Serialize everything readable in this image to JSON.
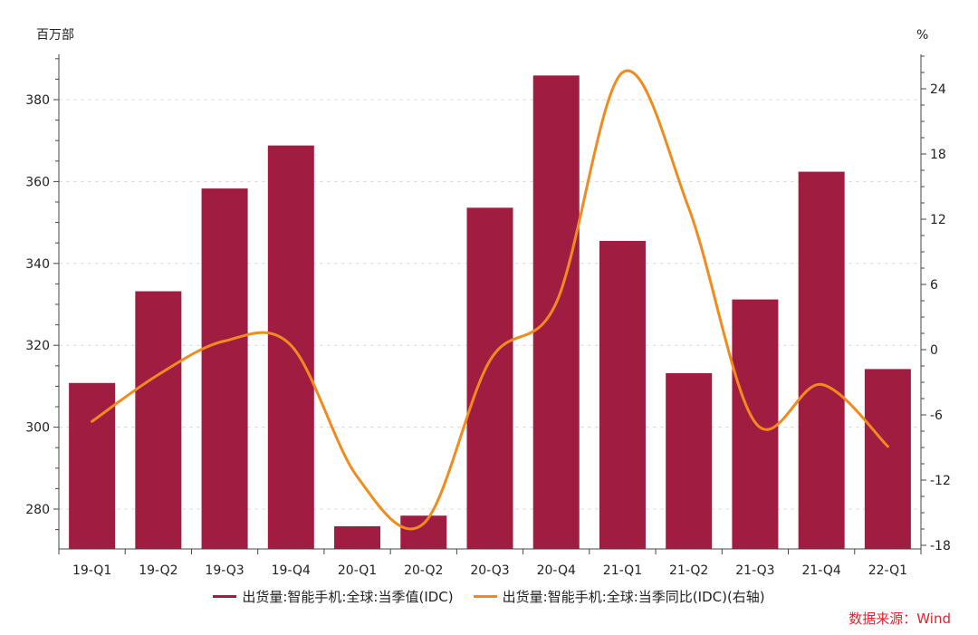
{
  "chart_data": {
    "type": "bar+line",
    "categories": [
      "19-Q1",
      "19-Q2",
      "19-Q3",
      "19-Q4",
      "20-Q1",
      "20-Q2",
      "20-Q3",
      "20-Q4",
      "21-Q1",
      "21-Q2",
      "21-Q3",
      "21-Q4",
      "22-Q1"
    ],
    "series": [
      {
        "name": "出货量:智能手机:全球:当季值(IDC)",
        "type": "bar",
        "axis": "left",
        "color": "#a01c40",
        "values": [
          310.8,
          333.2,
          358.3,
          368.8,
          275.8,
          278.4,
          353.6,
          385.9,
          345.5,
          313.2,
          331.2,
          362.4,
          314.2
        ]
      },
      {
        "name": "出货量:智能手机:全球:当季同比(IDC)(右轴)",
        "type": "line",
        "axis": "right",
        "color": "#f28b1e",
        "values": [
          -6.6,
          -2.3,
          0.8,
          0.4,
          -11.7,
          -16.0,
          -1.0,
          4.3,
          25.5,
          13.0,
          -6.7,
          -3.2,
          -8.9
        ]
      }
    ],
    "left_axis": {
      "unit": "百万部",
      "min": 270,
      "max": 390,
      "ticks": [
        280,
        300,
        320,
        340,
        360,
        380
      ]
    },
    "right_axis": {
      "unit": "%",
      "min": -18,
      "max": 27,
      "ticks": [
        24,
        18,
        12,
        6,
        0,
        -6,
        -12,
        -18
      ]
    },
    "grid": "horizontal dashed",
    "legend_position": "bottom"
  },
  "source": "数据来源：Wind"
}
